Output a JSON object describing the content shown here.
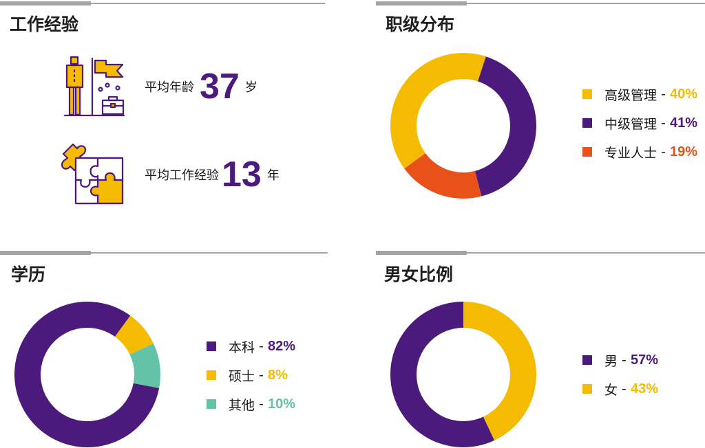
{
  "colors": {
    "purple": "#4b1a7c",
    "yellow": "#f5bb00",
    "orange": "#e8521a",
    "teal": "#62c3a6",
    "gray": "#a3a3a3"
  },
  "work": {
    "title": "工作经验",
    "age_label": "平均年龄",
    "age_value": "37",
    "age_unit": "岁",
    "exp_label": "平均工作经验",
    "exp_value": "13",
    "exp_unit": "年",
    "icons": [
      "person-flag-briefcase-icon",
      "puzzle-icon"
    ]
  },
  "chart_data": [
    {
      "type": "pie",
      "title": "职级分布",
      "donut": true,
      "legend_position": "right",
      "series": [
        {
          "name": "高级管理",
          "value": 40,
          "label": "40%",
          "color": "#f5bb00"
        },
        {
          "name": "中级管理",
          "value": 41,
          "label": "41%",
          "color": "#4b1a7c"
        },
        {
          "name": "专业人士",
          "value": 19,
          "label": "19%",
          "color": "#e8521a"
        }
      ]
    },
    {
      "type": "pie",
      "title": "学历",
      "donut": true,
      "legend_position": "right",
      "series": [
        {
          "name": "本科",
          "value": 82,
          "label": "82%",
          "color": "#4b1a7c"
        },
        {
          "name": "硕士",
          "value": 8,
          "label": "8%",
          "color": "#f5bb00"
        },
        {
          "name": "其他",
          "value": 10,
          "label": "10%",
          "color": "#62c3a6"
        }
      ]
    },
    {
      "type": "pie",
      "title": "男女比例",
      "donut": true,
      "legend_position": "right",
      "series": [
        {
          "name": "男",
          "value": 57,
          "label": "57%",
          "color": "#4b1a7c"
        },
        {
          "name": "女",
          "value": 43,
          "label": "43%",
          "color": "#f5bb00"
        }
      ]
    }
  ]
}
